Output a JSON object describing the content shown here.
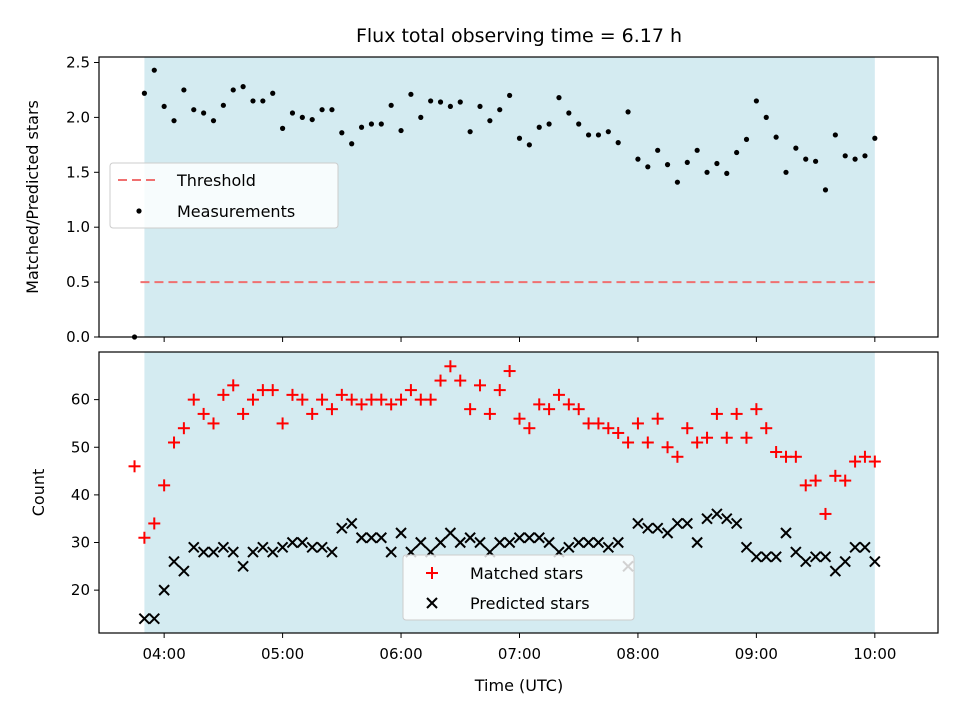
{
  "chart_data": [
    {
      "type": "scatter",
      "title": "Flux total observing time = 6.17 h",
      "ylabel": "Matched/Predicted stars",
      "xlabel": "",
      "ylim": [
        0,
        2.55
      ],
      "yticks": [
        "0.0",
        "0.5",
        "1.0",
        "1.5",
        "2.0",
        "2.5"
      ],
      "shaded_x_range": [
        "03:50",
        "10:00"
      ],
      "shade_color": "#d4ebf1",
      "threshold": {
        "name": "Threshold",
        "value": 0.5,
        "x_range": [
          "03:48",
          "10:00"
        ],
        "color": "#f07070"
      },
      "legend": [
        "Threshold",
        "Measurements"
      ],
      "legend_position": "center-left",
      "series": [
        {
          "name": "Measurements",
          "marker": "dot",
          "color": "#000000",
          "x": [
            "03:45",
            "03:50",
            "03:55",
            "04:00",
            "04:05",
            "04:10",
            "04:15",
            "04:20",
            "04:25",
            "04:30",
            "04:35",
            "04:40",
            "04:45",
            "04:50",
            "04:55",
            "05:00",
            "05:05",
            "05:10",
            "05:15",
            "05:20",
            "05:25",
            "05:30",
            "05:35",
            "05:40",
            "05:45",
            "05:50",
            "05:55",
            "06:00",
            "06:05",
            "06:10",
            "06:15",
            "06:20",
            "06:25",
            "06:30",
            "06:35",
            "06:40",
            "06:45",
            "06:50",
            "06:55",
            "07:00",
            "07:05",
            "07:10",
            "07:15",
            "07:20",
            "07:25",
            "07:30",
            "07:35",
            "07:40",
            "07:45",
            "07:50",
            "07:55",
            "08:00",
            "08:05",
            "08:10",
            "08:15",
            "08:20",
            "08:25",
            "08:30",
            "08:35",
            "08:40",
            "08:45",
            "08:50",
            "08:55",
            "09:00",
            "09:05",
            "09:10",
            "09:15",
            "09:20",
            "09:25",
            "09:30",
            "09:35",
            "09:40",
            "09:45",
            "09:50",
            "09:55",
            "10:00"
          ],
          "values": [
            0.0,
            2.22,
            2.43,
            2.1,
            1.97,
            2.25,
            2.07,
            2.04,
            1.97,
            2.11,
            2.25,
            2.28,
            2.15,
            2.15,
            2.22,
            1.9,
            2.04,
            2.0,
            1.98,
            2.07,
            2.07,
            1.86,
            1.76,
            1.91,
            1.94,
            1.94,
            2.11,
            1.88,
            2.21,
            2.0,
            2.15,
            2.14,
            2.1,
            2.14,
            1.87,
            2.1,
            1.97,
            2.07,
            2.2,
            1.81,
            1.75,
            1.91,
            1.94,
            2.18,
            2.04,
            1.94,
            1.84,
            1.84,
            1.87,
            1.77,
            2.05,
            1.62,
            1.55,
            1.7,
            1.57,
            1.41,
            1.59,
            1.7,
            1.5,
            1.58,
            1.49,
            1.68,
            1.8,
            2.15,
            2.0,
            1.82,
            1.5,
            1.72,
            1.62,
            1.6,
            1.34,
            1.84,
            1.65,
            1.62,
            1.65,
            1.81
          ]
        }
      ]
    },
    {
      "type": "scatter",
      "title": "",
      "xlabel": "Time (UTC)",
      "ylabel": "Count",
      "ylim": [
        11,
        70
      ],
      "yticks": [
        "20",
        "30",
        "40",
        "50",
        "60"
      ],
      "xticks": [
        "04:00",
        "05:00",
        "06:00",
        "07:00",
        "08:00",
        "09:00",
        "10:00"
      ],
      "xlim": [
        "03:27",
        "10:32"
      ],
      "shaded_x_range": [
        "03:50",
        "10:00"
      ],
      "shade_color": "#d4ebf1",
      "legend": [
        "Matched stars",
        "Predicted stars"
      ],
      "legend_position": "lower-center",
      "series": [
        {
          "name": "Matched stars",
          "marker": "plus",
          "color": "#ff0000",
          "x": [
            "03:45",
            "03:50",
            "03:55",
            "04:00",
            "04:05",
            "04:10",
            "04:15",
            "04:20",
            "04:25",
            "04:30",
            "04:35",
            "04:40",
            "04:45",
            "04:50",
            "04:55",
            "05:00",
            "05:05",
            "05:10",
            "05:15",
            "05:20",
            "05:25",
            "05:30",
            "05:35",
            "05:40",
            "05:45",
            "05:50",
            "05:55",
            "06:00",
            "06:05",
            "06:10",
            "06:15",
            "06:20",
            "06:25",
            "06:30",
            "06:35",
            "06:40",
            "06:45",
            "06:50",
            "06:55",
            "07:00",
            "07:05",
            "07:10",
            "07:15",
            "07:20",
            "07:25",
            "07:30",
            "07:35",
            "07:40",
            "07:45",
            "07:50",
            "07:55",
            "08:00",
            "08:05",
            "08:10",
            "08:15",
            "08:20",
            "08:25",
            "08:30",
            "08:35",
            "08:40",
            "08:45",
            "08:50",
            "08:55",
            "09:00",
            "09:05",
            "09:10",
            "09:15",
            "09:20",
            "09:25",
            "09:30",
            "09:35",
            "09:40",
            "09:45",
            "09:50",
            "09:55",
            "10:00"
          ],
          "values": [
            46,
            31,
            34,
            42,
            51,
            54,
            60,
            57,
            55,
            61,
            63,
            57,
            60,
            62,
            62,
            55,
            61,
            60,
            57,
            60,
            58,
            61,
            60,
            59,
            60,
            60,
            59,
            60,
            62,
            60,
            60,
            64,
            67,
            64,
            58,
            63,
            57,
            62,
            66,
            56,
            54,
            59,
            58,
            61,
            59,
            58,
            55,
            55,
            54,
            53,
            51,
            55,
            51,
            56,
            50,
            48,
            54,
            51,
            52,
            57,
            52,
            57,
            52,
            58,
            54,
            49,
            48,
            48,
            42,
            43,
            36,
            44,
            43,
            47,
            48,
            47
          ]
        },
        {
          "name": "Predicted stars",
          "marker": "x",
          "color": "#000000",
          "x": [
            "03:50",
            "03:55",
            "04:00",
            "04:05",
            "04:10",
            "04:15",
            "04:20",
            "04:25",
            "04:30",
            "04:35",
            "04:40",
            "04:45",
            "04:50",
            "04:55",
            "05:00",
            "05:05",
            "05:10",
            "05:15",
            "05:20",
            "05:25",
            "05:30",
            "05:35",
            "05:40",
            "05:45",
            "05:50",
            "05:55",
            "06:00",
            "06:05",
            "06:10",
            "06:15",
            "06:20",
            "06:25",
            "06:30",
            "06:35",
            "06:40",
            "06:45",
            "06:50",
            "06:55",
            "07:00",
            "07:05",
            "07:10",
            "07:15",
            "07:20",
            "07:25",
            "07:30",
            "07:35",
            "07:40",
            "07:45",
            "07:50",
            "07:55",
            "08:00",
            "08:05",
            "08:10",
            "08:15",
            "08:20",
            "08:25",
            "08:30",
            "08:35",
            "08:40",
            "08:45",
            "08:50",
            "08:55",
            "09:00",
            "09:05",
            "09:10",
            "09:15",
            "09:20",
            "09:25",
            "09:30",
            "09:35",
            "09:40",
            "09:45",
            "09:50",
            "09:55",
            "10:00"
          ],
          "values": [
            14,
            14,
            20,
            26,
            24,
            29,
            28,
            28,
            29,
            28,
            25,
            28,
            29,
            28,
            29,
            30,
            30,
            29,
            29,
            28,
            33,
            34,
            31,
            31,
            31,
            28,
            32,
            28,
            30,
            28,
            30,
            32,
            30,
            31,
            30,
            28,
            30,
            30,
            31,
            31,
            31,
            30,
            28,
            29,
            30,
            30,
            30,
            29,
            30,
            25,
            34,
            33,
            33,
            32,
            34,
            34,
            30,
            35,
            36,
            35,
            34,
            29,
            27,
            27,
            27,
            32,
            28,
            26,
            27,
            27,
            24,
            26,
            29,
            29,
            26
          ]
        }
      ]
    }
  ]
}
